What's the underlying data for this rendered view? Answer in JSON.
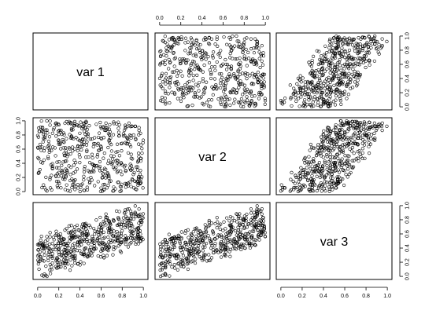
{
  "chart_data": {
    "type": "scatter",
    "variables": [
      "var 1",
      "var 2",
      "var 3"
    ],
    "axis_range": [
      0,
      1
    ],
    "tick_labels": [
      "0.0",
      "0.2",
      "0.4",
      "0.6",
      "0.8",
      "1.0"
    ],
    "tick_values": [
      0,
      0.2,
      0.4,
      0.6,
      0.8,
      1.0
    ],
    "grid": false,
    "legend": "none",
    "n_points": 500,
    "data_note_seed": 20240521,
    "colors": {
      "points": "#000000",
      "frame": "#000000",
      "background": "#ffffff"
    }
  }
}
